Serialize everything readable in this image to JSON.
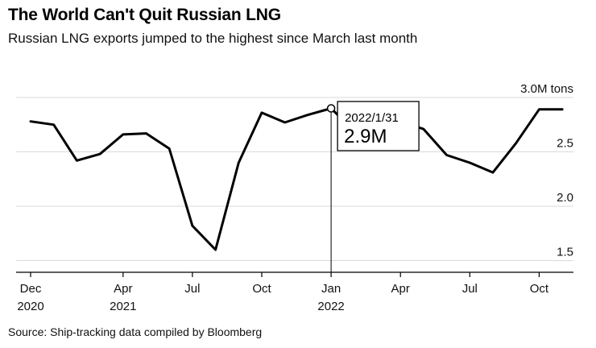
{
  "title": "The World Can't Quit Russian LNG",
  "subtitle": "Russian LNG exports jumped to the highest since March last month",
  "source": "Source: Ship-tracking data compiled by Bloomberg",
  "colors": {
    "line": "#000000",
    "grid": "#d9d9d9",
    "axis": "#000000"
  },
  "tooltip": {
    "date": "2022/1/31",
    "value": "2.9M"
  },
  "chart_data": {
    "type": "line",
    "title": "The World Can't Quit Russian LNG",
    "xlabel": "",
    "ylabel": "",
    "unit": "M tons",
    "ylim": [
      1.4,
      3.0
    ],
    "yticks": [
      {
        "value": 3.0,
        "label": "3.0M tons"
      },
      {
        "value": 2.5,
        "label": "2.5"
      },
      {
        "value": 2.0,
        "label": "2.0"
      },
      {
        "value": 1.5,
        "label": "1.5"
      }
    ],
    "xticks": [
      {
        "label": "Dec",
        "sublabel": "2020",
        "x": "2020-12"
      },
      {
        "label": "Apr",
        "sublabel": "2021",
        "x": "2021-04"
      },
      {
        "label": "Jul",
        "sublabel": "",
        "x": "2021-07"
      },
      {
        "label": "Oct",
        "sublabel": "",
        "x": "2021-10"
      },
      {
        "label": "Jan",
        "sublabel": "2022",
        "x": "2022-01"
      },
      {
        "label": "Apr",
        "sublabel": "",
        "x": "2022-04"
      },
      {
        "label": "Jul",
        "sublabel": "",
        "x": "2022-07"
      },
      {
        "label": "Oct",
        "sublabel": "",
        "x": "2022-10"
      }
    ],
    "grid": true,
    "legend": "none",
    "highlight": {
      "x": "2022-01",
      "value": 2.9
    },
    "series": [
      {
        "x": [
          "2020-12",
          "2021-01",
          "2021-02",
          "2021-03",
          "2021-04",
          "2021-05",
          "2021-06",
          "2021-07",
          "2021-08",
          "2021-09",
          "2021-10",
          "2021-11",
          "2021-12",
          "2022-01",
          "2022-02",
          "2022-03",
          "2022-04",
          "2022-05",
          "2022-06",
          "2022-07",
          "2022-08",
          "2022-09",
          "2022-10",
          "2022-11"
        ],
        "values": [
          2.78,
          2.75,
          2.42,
          2.48,
          2.66,
          2.67,
          2.53,
          1.82,
          1.6,
          2.4,
          2.86,
          2.77,
          2.84,
          2.9,
          2.69,
          2.8,
          2.78,
          2.71,
          2.47,
          2.4,
          2.31,
          2.58,
          2.89,
          2.89
        ]
      }
    ]
  }
}
